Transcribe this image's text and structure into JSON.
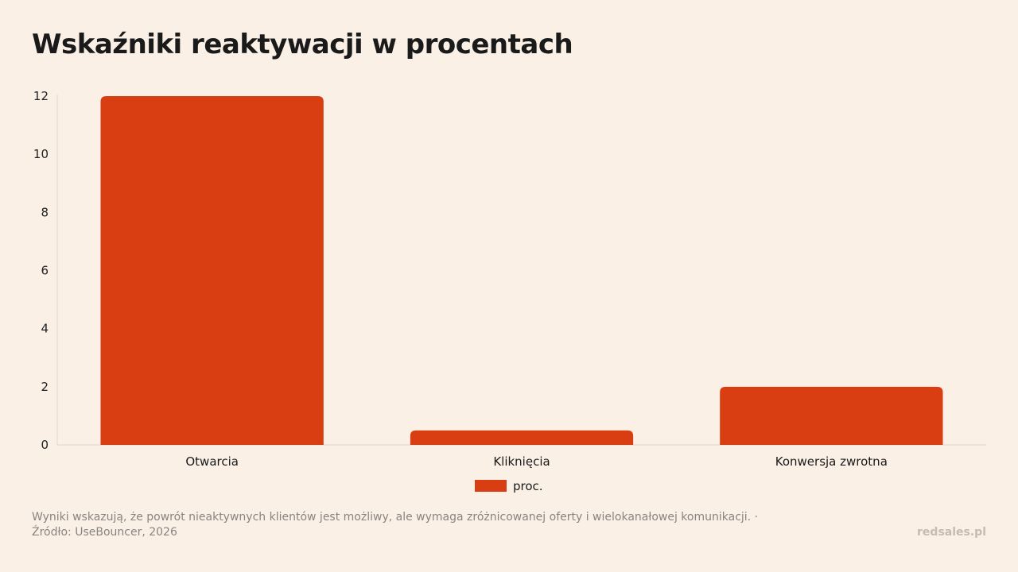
{
  "header": {
    "title": "Wskaźniki reaktywacji w procentach"
  },
  "chart_data": {
    "type": "bar",
    "categories": [
      "Otwarcia",
      "Kliknięcia",
      "Konwersja zwrotna"
    ],
    "series": [
      {
        "name": "proc.",
        "values": [
          12,
          0.5,
          2
        ],
        "color": "#d93d12"
      }
    ],
    "yticks": [
      0,
      2,
      4,
      6,
      8,
      10,
      12
    ],
    "ylim": [
      0,
      12
    ],
    "grid": false,
    "legend_position": "bottom"
  },
  "footer": {
    "note": "Wyniki wskazują, że powrót nieaktywnych klientów jest możliwy, ale wymaga zróżnicowanej oferty i wielokanałowej komunikacji. · Źródło: UseBouncer, 2026",
    "brand": "redsales.pl"
  }
}
